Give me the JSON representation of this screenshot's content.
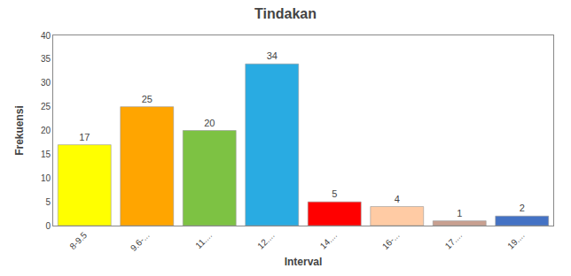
{
  "chart_data": {
    "type": "bar",
    "title": "Tindakan",
    "xlabel": "Interval",
    "ylabel": "Frekuensi",
    "categories": [
      "8-9.5",
      "9.6-...",
      "11....",
      "12....",
      "14....",
      "16-...",
      "17....",
      "19...."
    ],
    "values": [
      17,
      25,
      20,
      34,
      5,
      4,
      1,
      2
    ],
    "colors": [
      "#FFFF00",
      "#FFA500",
      "#7DC243",
      "#29ABE2",
      "#FF0000",
      "#FFCBA4",
      "#C8A090",
      "#4472C4"
    ],
    "ylim": [
      0,
      40
    ],
    "yticks": [
      0,
      5,
      10,
      15,
      20,
      25,
      30,
      35,
      40
    ],
    "grid": false,
    "data_labels": true
  }
}
